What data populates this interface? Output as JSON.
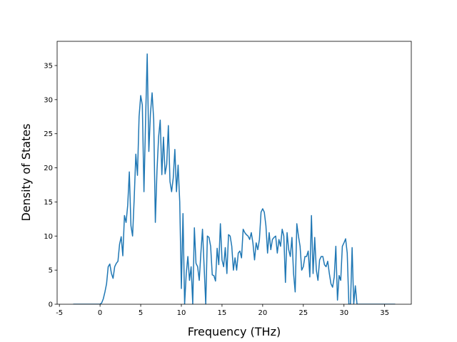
{
  "chart_data": {
    "type": "line",
    "xlabel": "Frequency (THz)",
    "ylabel": "Density of States",
    "color": "#1f77b4",
    "x": [
      -3.3,
      -0.2,
      0,
      0.2,
      0.4,
      0.6,
      0.8,
      1.0,
      1.2,
      1.4,
      1.6,
      1.8,
      2.0,
      2.2,
      2.4,
      2.6,
      2.8,
      3.0,
      3.2,
      3.4,
      3.6,
      3.8,
      4.0,
      4.2,
      4.4,
      4.6,
      4.8,
      5.0,
      5.2,
      5.4,
      5.6,
      5.8,
      6.0,
      6.2,
      6.4,
      6.6,
      6.8,
      7.0,
      7.2,
      7.4,
      7.6,
      7.8,
      8.0,
      8.2,
      8.4,
      8.6,
      8.8,
      9.0,
      9.2,
      9.4,
      9.6,
      9.8,
      10.0,
      10.2,
      10.4,
      10.6,
      10.8,
      11.0,
      11.2,
      11.4,
      11.6,
      11.8,
      12.0,
      12.2,
      12.4,
      12.6,
      12.8,
      13.0,
      13.2,
      13.4,
      13.6,
      13.8,
      14.0,
      14.2,
      14.4,
      14.6,
      14.8,
      15.0,
      15.2,
      15.4,
      15.6,
      15.8,
      16.0,
      16.2,
      16.4,
      16.6,
      16.8,
      17.0,
      17.2,
      17.4,
      17.6,
      17.8,
      18.0,
      18.2,
      18.4,
      18.6,
      18.8,
      19.0,
      19.2,
      19.4,
      19.6,
      19.8,
      20.0,
      20.2,
      20.4,
      20.6,
      20.8,
      21.0,
      21.2,
      21.4,
      21.6,
      21.8,
      22.0,
      22.2,
      22.4,
      22.6,
      22.8,
      23.0,
      23.2,
      23.4,
      23.6,
      23.8,
      24.0,
      24.2,
      24.4,
      24.6,
      24.8,
      25.0,
      25.2,
      25.4,
      25.6,
      25.8,
      26.0,
      26.2,
      26.4,
      26.6,
      26.8,
      27.0,
      27.2,
      27.4,
      27.6,
      27.8,
      28.0,
      28.2,
      28.4,
      28.6,
      28.8,
      29.0,
      29.2,
      29.4,
      29.6,
      29.8,
      30.0,
      30.2,
      30.4,
      30.6,
      30.8,
      31.0,
      31.2,
      31.4,
      31.6,
      31.8,
      36.3
    ],
    "values": [
      0,
      0,
      0,
      0.2,
      0.8,
      1.8,
      3,
      5.5,
      5.9,
      4.5,
      3.8,
      5.5,
      6.0,
      6.3,
      8.8,
      9.9,
      7.1,
      13.0,
      12.0,
      14.5,
      19.4,
      11.5,
      10.0,
      15.5,
      22.0,
      18.9,
      27.5,
      30.6,
      29.2,
      16.5,
      27.0,
      36.7,
      22.4,
      28.0,
      31.0,
      27.0,
      12.0,
      19.5,
      24.5,
      27.0,
      19.0,
      24.5,
      19.1,
      20.5,
      26.2,
      18.0,
      16.5,
      18.5,
      22.7,
      16.5,
      20.4,
      15.0,
      2.3,
      13.3,
      0,
      4.5,
      7.0,
      3.5,
      5.5,
      0,
      11.2,
      6.0,
      5.5,
      3.5,
      7.5,
      11.0,
      5.5,
      0,
      10.0,
      9.8,
      8.5,
      4.3,
      4.2,
      3.4,
      8.2,
      5.8,
      11.8,
      6.5,
      5.5,
      8.3,
      4.5,
      10.2,
      10.0,
      8.5,
      5.0,
      6.8,
      5.0,
      7.5,
      7.8,
      6.8,
      11.0,
      10.5,
      10.2,
      10.0,
      9.5,
      10.5,
      9.0,
      6.5,
      9.0,
      8.0,
      9.5,
      13.5,
      14.0,
      13.5,
      11.5,
      7.5,
      10.5,
      8.0,
      9.5,
      9.8,
      10.0,
      7.5,
      9.5,
      8.5,
      11.0,
      10.0,
      3.2,
      10.5,
      8.0,
      7.0,
      9.8,
      4.5,
      1.8,
      11.8,
      10.0,
      8.5,
      5.0,
      5.5,
      7.0,
      7.0,
      7.8,
      4.0,
      13.0,
      4.5,
      9.8,
      5.0,
      3.5,
      6.5,
      7.0,
      7.0,
      5.8,
      5.5,
      6.3,
      4.5,
      3.0,
      2.5,
      4.0,
      8.5,
      0.6,
      4.2,
      3.5,
      8.5,
      9.0,
      9.6,
      7.5,
      0,
      0,
      8.3,
      0,
      2.7,
      0,
      0,
      0
    ],
    "xlim": [
      -5.28,
      38.28
    ],
    "ylim": [
      0,
      38.55
    ],
    "xticks": [
      -5,
      0,
      5,
      10,
      15,
      20,
      25,
      30,
      35
    ],
    "yticks": [
      0,
      5,
      10,
      15,
      20,
      25,
      30,
      35
    ]
  }
}
